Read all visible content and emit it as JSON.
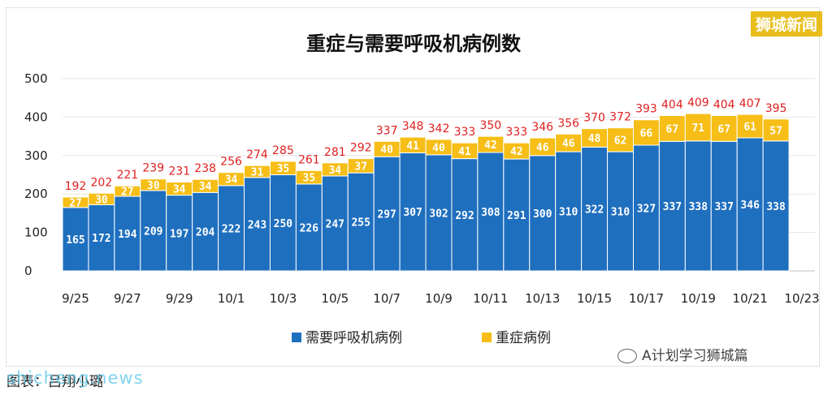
{
  "brand": "狮城新闻",
  "watermark": "A计划学习狮城篇",
  "caption": "图表：吕翔小璐",
  "site_url": "shicheng.news",
  "colors": {
    "series_ventilator": "#1f6fbf",
    "series_severe": "#f6be16",
    "total_label": "#e02020"
  },
  "chart_data": {
    "type": "bar",
    "stacked": true,
    "title": "重症与需要呼吸机病例数",
    "categories": [
      "9/25",
      "9/26",
      "9/27",
      "9/28",
      "9/29",
      "9/30",
      "10/1",
      "10/2",
      "10/3",
      "10/4",
      "10/5",
      "10/6",
      "10/7",
      "10/8",
      "10/9",
      "10/10",
      "10/11",
      "10/12",
      "10/13",
      "10/14",
      "10/15",
      "10/16",
      "10/17",
      "10/18",
      "10/19",
      "10/20",
      "10/21",
      "10/22",
      "10/23"
    ],
    "x_tick_labels": [
      "9/25",
      "9/27",
      "9/29",
      "10/1",
      "10/3",
      "10/5",
      "10/7",
      "10/9",
      "10/11",
      "10/13",
      "10/15",
      "10/17",
      "10/19",
      "10/21",
      "10/23"
    ],
    "series": [
      {
        "name": "需要呼吸机病例",
        "values": [
          165,
          172,
          194,
          209,
          197,
          204,
          222,
          243,
          250,
          226,
          247,
          255,
          297,
          307,
          302,
          292,
          308,
          291,
          300,
          310,
          322,
          310,
          327,
          337,
          338,
          337,
          346,
          338,
          null
        ]
      },
      {
        "name": "重症病例",
        "values": [
          27,
          30,
          27,
          30,
          34,
          34,
          34,
          31,
          35,
          35,
          34,
          37,
          40,
          41,
          40,
          41,
          42,
          42,
          46,
          46,
          48,
          62,
          66,
          67,
          71,
          67,
          61,
          57,
          null
        ]
      }
    ],
    "totals": [
      192,
      202,
      221,
      239,
      231,
      238,
      256,
      274,
      285,
      261,
      281,
      292,
      337,
      348,
      342,
      333,
      350,
      333,
      346,
      356,
      370,
      372,
      393,
      404,
      409,
      404,
      407,
      395,
      null
    ],
    "y_ticks": [
      0,
      100,
      200,
      300,
      400,
      500
    ],
    "ylim": [
      0,
      500
    ],
    "grid": true,
    "legend_position": "bottom"
  }
}
